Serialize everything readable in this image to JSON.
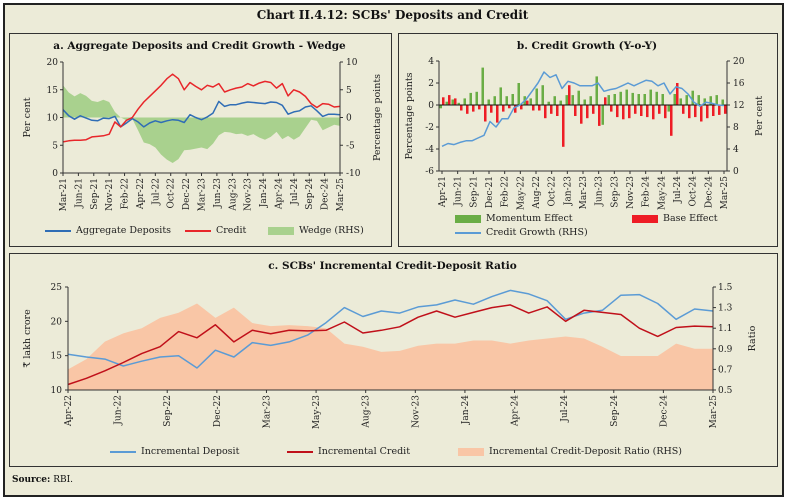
{
  "title": "Chart II.4.12: SCBs' Deposits and Credit",
  "source_label": "Source:",
  "source_text": "RBI.",
  "colors": {
    "background": "#ecebd8",
    "blue": "#2f6db5",
    "red": "#e8262a",
    "wedge": "#a9d18e",
    "momentum": "#6aad45",
    "base": "#ee1c25",
    "light_blue": "#5b9bd5",
    "dark_red": "#c0101a",
    "ratio_area": "#f9c6a6"
  },
  "chart_data": [
    {
      "id": "a",
      "type": "line",
      "title": "a. Aggregate Deposits and Credit Growth - Wedge",
      "ylabel": "Per cent",
      "y2label": "Percentage points",
      "ylim": [
        0,
        20
      ],
      "yticks": [
        0,
        5,
        10,
        15,
        20
      ],
      "y2lim": [
        -10,
        10
      ],
      "y2ticks": [
        -10,
        -5,
        0,
        5,
        10
      ],
      "xticklabels": [
        "Mar-21",
        "Jun-21",
        "Sep-21",
        "Nov-21",
        "Feb-22",
        "Apr-22",
        "Jul-22",
        "Oct-22",
        "Dec-22",
        "Mar-23",
        "Jun-23",
        "Aug-23",
        "Nov-23",
        "Jan-24",
        "Apr-24",
        "Jul-24",
        "Sep-24",
        "Dec-24",
        "Mar-25"
      ],
      "legend": [
        "Aggregate Deposits",
        "Credit",
        "Wedge (RHS)"
      ],
      "series": [
        {
          "name": "Aggregate Deposits",
          "axis": "left",
          "values": [
            11.4,
            10.3,
            9.7,
            10.3,
            9.9,
            9.5,
            9.4,
            9.9,
            9.8,
            10.2,
            8.3,
            9.0,
            9.8,
            9.2,
            8.3,
            9.0,
            9.4,
            9.1,
            9.4,
            9.6,
            9.5,
            9.1,
            10.5,
            10.0,
            9.6,
            10.1,
            10.8,
            12.9,
            12.0,
            12.3,
            12.3,
            12.6,
            12.8,
            12.7,
            12.6,
            12.5,
            12.8,
            12.7,
            12.2,
            10.6,
            11.0,
            11.2,
            11.9,
            12.1,
            11.2,
            10.2,
            10.6,
            10.6,
            10.5
          ]
        },
        {
          "name": "Credit",
          "axis": "left",
          "values": [
            5.6,
            5.8,
            5.9,
            5.9,
            6.0,
            6.5,
            6.6,
            6.7,
            7.0,
            9.2,
            8.3,
            9.5,
            10.0,
            11.5,
            12.8,
            13.8,
            14.8,
            15.8,
            17.0,
            17.8,
            17.0,
            15.0,
            16.3,
            15.6,
            15.0,
            15.8,
            15.5,
            16.1,
            14.6,
            15.0,
            15.3,
            15.5,
            16.1,
            15.7,
            16.2,
            16.5,
            16.3,
            15.3,
            16.1,
            13.9,
            15.0,
            14.6,
            13.8,
            12.5,
            11.8,
            12.5,
            12.4,
            11.9,
            12.0
          ]
        },
        {
          "name": "Wedge (RHS)",
          "axis": "right",
          "type": "area",
          "values": [
            5.8,
            4.5,
            3.8,
            4.4,
            3.9,
            3.0,
            2.8,
            3.2,
            2.8,
            1.0,
            0.0,
            -0.5,
            -0.2,
            -2.3,
            -4.5,
            -4.8,
            -5.4,
            -6.7,
            -7.6,
            -8.2,
            -7.5,
            -5.9,
            -5.8,
            -5.6,
            -5.4,
            -5.7,
            -4.7,
            -3.2,
            -2.6,
            -2.7,
            -3.0,
            -2.9,
            -3.3,
            -3.0,
            -3.6,
            -4.0,
            -3.5,
            -2.6,
            -3.9,
            -3.3,
            -4.0,
            -3.4,
            -1.9,
            -0.4,
            -0.6,
            -2.3,
            -1.8,
            -1.3,
            -1.5
          ]
        }
      ]
    },
    {
      "id": "b",
      "type": "bar",
      "title": "b. Credit Growth (Y-o-Y)",
      "ylabel": "Percentage points",
      "y2label": "Per cent",
      "ylim": [
        -6,
        4
      ],
      "yticks": [
        -6,
        -4,
        -2,
        0,
        2,
        4
      ],
      "y2lim": [
        0,
        20
      ],
      "y2ticks": [
        0,
        4,
        8,
        12,
        16,
        20
      ],
      "xticklabels": [
        "Apr-21",
        "Jun-21",
        "Sep-21",
        "Dec-21",
        "Feb-22",
        "May-22",
        "Aug-22",
        "Oct-22",
        "Jan-23",
        "Mar-23",
        "Jun-23",
        "Sep-23",
        "Nov-23",
        "Feb-24",
        "May-24",
        "Jul-24",
        "Oct-24",
        "Dec-24",
        "Mar-25"
      ],
      "legend": [
        "Momentum Effect",
        "Base Effect",
        "Credit Growth (RHS)"
      ],
      "series": [
        {
          "name": "Momentum Effect",
          "axis": "left",
          "type": "bar",
          "values": [
            -0.3,
            0.3,
            0.5,
            0.2,
            0.6,
            1.1,
            1.2,
            3.4,
            0.5,
            0.8,
            1.6,
            0.8,
            1.0,
            2.0,
            0.8,
            0.6,
            1.5,
            1.8,
            0.3,
            0.8,
            0.4,
            0.9,
            0.9,
            1.3,
            0.5,
            0.8,
            2.6,
            -1.8,
            0.9,
            1.0,
            1.2,
            1.4,
            1.1,
            1.0,
            1.0,
            1.4,
            1.2,
            1.0,
            -0.6,
            1.0,
            0.6,
            0.9,
            1.3,
            0.9,
            0.6,
            0.8,
            0.9,
            0.5
          ]
        },
        {
          "name": "Base Effect",
          "axis": "left",
          "type": "bar",
          "values": [
            0.7,
            0.9,
            0.6,
            -0.5,
            -0.8,
            -0.6,
            -0.4,
            -1.5,
            -0.7,
            -1.6,
            -0.6,
            -0.3,
            -0.7,
            -0.4,
            0.4,
            -0.5,
            -0.5,
            -1.2,
            -0.8,
            -1.0,
            -3.8,
            1.8,
            -1.0,
            -1.7,
            -1.2,
            -0.8,
            -1.9,
            0.7,
            -0.6,
            -1.1,
            -1.3,
            -1.2,
            -0.8,
            -1.0,
            -1.1,
            -1.3,
            -0.8,
            -1.2,
            -2.8,
            2.0,
            -0.8,
            -1.2,
            -1.1,
            -1.5,
            -1.2,
            -1.0,
            -0.9,
            -0.8
          ]
        },
        {
          "name": "Credit Growth (RHS)",
          "axis": "right",
          "type": "line",
          "values": [
            4.5,
            5.0,
            4.8,
            5.2,
            5.5,
            5.5,
            6.0,
            6.5,
            9.0,
            8.0,
            9.5,
            9.5,
            11.5,
            12.0,
            13.0,
            14.5,
            16.0,
            18.0,
            17.0,
            17.5,
            15.0,
            16.3,
            16.0,
            15.5,
            15.5,
            15.5,
            16.0,
            14.5,
            14.8,
            15.0,
            15.5,
            16.0,
            15.5,
            16.0,
            16.5,
            16.3,
            15.5,
            16.0,
            14.0,
            15.3,
            15.0,
            14.0,
            12.5,
            11.8,
            12.5,
            12.3,
            12.0,
            11.9
          ]
        }
      ]
    },
    {
      "id": "c",
      "type": "line",
      "title": "c. SCBs' Incremental Credit-Deposit Ratio",
      "ylabel": "₹ lakh crore",
      "y2label": "Ratio",
      "ylim": [
        10,
        25
      ],
      "yticks": [
        10,
        15,
        20,
        25
      ],
      "y2lim": [
        0.5,
        1.5
      ],
      "y2ticks": [
        0.5,
        0.7,
        0.9,
        1.1,
        1.3,
        1.5
      ],
      "xticklabels": [
        "Apr-22",
        "Jun-22",
        "Sep-22",
        "Dec-22",
        "Mar-23",
        "May-23",
        "Aug-23",
        "Nov-23",
        "Jan-24",
        "Apr-24",
        "Jul-24",
        "Sep-24",
        "Dec-24",
        "Mar-25"
      ],
      "legend": [
        "Incremental Deposit",
        "Incremental Credit",
        "Incremental Credit-Deposit Ratio (RHS)"
      ],
      "series": [
        {
          "name": "Incremental Deposit",
          "axis": "left",
          "values": [
            15.2,
            14.8,
            14.5,
            13.5,
            14.2,
            14.8,
            15.0,
            13.2,
            15.8,
            14.8,
            16.9,
            16.5,
            17.0,
            18.0,
            19.8,
            22.0,
            20.7,
            21.5,
            21.2,
            22.1,
            22.4,
            23.1,
            22.5,
            23.6,
            24.5,
            24.0,
            23.0,
            20.3,
            21.2,
            21.6,
            23.8,
            23.9,
            22.6,
            20.3,
            21.8,
            21.5
          ]
        },
        {
          "name": "Incremental Credit",
          "axis": "left",
          "values": [
            10.8,
            11.7,
            12.8,
            14.0,
            15.3,
            16.3,
            18.5,
            17.6,
            19.5,
            17.0,
            18.7,
            18.2,
            18.7,
            18.6,
            18.7,
            19.9,
            18.3,
            18.7,
            19.2,
            20.6,
            21.5,
            20.6,
            21.3,
            22.0,
            22.4,
            21.2,
            22.1,
            20.0,
            21.6,
            21.3,
            21.0,
            19.0,
            17.8,
            19.1,
            19.3,
            19.2
          ]
        },
        {
          "name": "Incremental Credit-Deposit Ratio (RHS)",
          "axis": "right",
          "type": "area",
          "values": [
            0.7,
            0.8,
            0.97,
            1.05,
            1.1,
            1.2,
            1.25,
            1.34,
            1.2,
            1.3,
            1.15,
            1.12,
            1.13,
            1.12,
            1.1,
            0.95,
            0.92,
            0.87,
            0.88,
            0.93,
            0.95,
            0.95,
            0.98,
            0.98,
            0.95,
            0.98,
            1.0,
            1.02,
            1.0,
            0.92,
            0.83,
            0.83,
            0.83,
            0.95,
            0.9,
            0.9
          ]
        }
      ]
    }
  ]
}
